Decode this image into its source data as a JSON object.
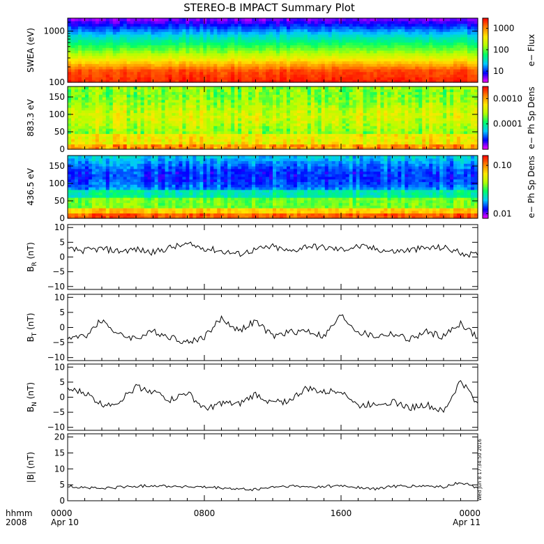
{
  "title": "STEREO-B IMPACT Summary Plot",
  "footer": {
    "row1_left": "hhmm",
    "row2_left": "2008",
    "ticks": [
      {
        "top": "0000",
        "bottom": "Apr 10",
        "frac": 0.0
      },
      {
        "top": "0800",
        "bottom": "",
        "frac": 0.3333
      },
      {
        "top": "1600",
        "bottom": "",
        "frac": 0.6667
      },
      {
        "top": "0000",
        "bottom": "Apr 11",
        "frac": 1.0
      }
    ]
  },
  "timestamp": "Wed Jun  8 17:34:50 2016",
  "colors": {
    "line": "#000000",
    "colormap": [
      "#ff00ff",
      "#0000ff",
      "#00c8ff",
      "#00ff66",
      "#b4ff00",
      "#ffe600",
      "#ff8000",
      "#ff0000"
    ]
  },
  "chart_data": [
    {
      "type": "heatmap",
      "name": "swea",
      "ylabel": "SWEA (eV)",
      "yscale": "log",
      "ylim": [
        100,
        1800
      ],
      "yticks": [
        {
          "label": "1000",
          "value": 1000
        },
        {
          "label": "100",
          "value": 100
        }
      ],
      "colorbar": {
        "label": "e− Flux",
        "scale": "log",
        "range": [
          3,
          3000
        ],
        "ticks": [
          {
            "label": "1000",
            "value": 1000
          },
          {
            "label": "100",
            "value": 100
          },
          {
            "label": "10",
            "value": 10
          }
        ]
      },
      "xlim_hours": [
        0,
        24
      ]
    },
    {
      "type": "heatmap",
      "name": "pad883",
      "ylabel": "883.3 eV",
      "yscale": "linear",
      "ylim": [
        0,
        180
      ],
      "yticks": [
        {
          "label": "150",
          "value": 150
        },
        {
          "label": "100",
          "value": 100
        },
        {
          "label": "50",
          "value": 50
        },
        {
          "label": "0",
          "value": 0
        }
      ],
      "colorbar": {
        "label": "e− Ph Sp Dens",
        "scale": "log",
        "range": [
          1e-05,
          0.003
        ],
        "ticks": [
          {
            "label": "0.0010",
            "value": 0.001
          },
          {
            "label": "0.0001",
            "value": 0.0001
          }
        ]
      },
      "xlim_hours": [
        0,
        24
      ]
    },
    {
      "type": "heatmap",
      "name": "pad436",
      "ylabel": "436.5 eV",
      "yscale": "linear",
      "ylim": [
        0,
        180
      ],
      "yticks": [
        {
          "label": "150",
          "value": 150
        },
        {
          "label": "100",
          "value": 100
        },
        {
          "label": "50",
          "value": 50
        },
        {
          "label": "0",
          "value": 0
        }
      ],
      "colorbar": {
        "label": "e− Ph Sp Dens",
        "scale": "log",
        "range": [
          0.008,
          0.16
        ],
        "ticks": [
          {
            "label": "0.10",
            "value": 0.1
          },
          {
            "label": "0.01",
            "value": 0.01
          }
        ]
      },
      "xlim_hours": [
        0,
        24
      ]
    },
    {
      "type": "line",
      "name": "br",
      "ylabel_main": "B",
      "ylabel_sub": "R",
      "ylabel_unit": " (nT)",
      "ylim": [
        -11,
        11
      ],
      "yticks": [
        {
          "label": "10",
          "value": 10
        },
        {
          "label": "5",
          "value": 5
        },
        {
          "label": "0",
          "value": 0
        },
        {
          "label": "−5",
          "value": -5
        },
        {
          "label": "−10",
          "value": -10
        }
      ],
      "x_hours": [
        0,
        1,
        2,
        3,
        4,
        5,
        6,
        7,
        8,
        9,
        10,
        11,
        12,
        13,
        14,
        15,
        16,
        17,
        18,
        19,
        20,
        21,
        22,
        23,
        24
      ],
      "y": [
        2.5,
        2.2,
        2.8,
        2.0,
        2.6,
        1.5,
        3.2,
        4.2,
        3.0,
        2.0,
        1.0,
        2.5,
        3.5,
        1.8,
        3.8,
        3.2,
        2.5,
        3.6,
        2.8,
        1.8,
        2.3,
        3.0,
        3.2,
        1.5,
        0.5
      ]
    },
    {
      "type": "line",
      "name": "bt",
      "ylabel_main": "B",
      "ylabel_sub": "T",
      "ylabel_unit": " (nT)",
      "ylim": [
        -11,
        11
      ],
      "yticks": [
        {
          "label": "10",
          "value": 10
        },
        {
          "label": "5",
          "value": 5
        },
        {
          "label": "0",
          "value": 0
        },
        {
          "label": "−5",
          "value": -5
        },
        {
          "label": "−10",
          "value": -10
        }
      ],
      "x_hours": [
        0,
        1,
        2,
        3,
        4,
        5,
        6,
        7,
        8,
        9,
        10,
        11,
        12,
        13,
        14,
        15,
        16,
        17,
        18,
        19,
        20,
        21,
        22,
        23,
        24
      ],
      "y": [
        -3.5,
        -3.0,
        2.5,
        -2.5,
        -3.5,
        -1.5,
        -3.0,
        -5.0,
        -3.0,
        3.0,
        -1.0,
        2.0,
        -3.0,
        -1.5,
        -1.0,
        -3.0,
        4.0,
        -1.5,
        -3.0,
        -2.0,
        -4.0,
        -1.5,
        -3.0,
        1.5,
        -3.5
      ]
    },
    {
      "type": "line",
      "name": "bn",
      "ylabel_main": "B",
      "ylabel_sub": "N",
      "ylabel_unit": " (nT)",
      "ylim": [
        -11,
        11
      ],
      "yticks": [
        {
          "label": "10",
          "value": 10
        },
        {
          "label": "5",
          "value": 5
        },
        {
          "label": "0",
          "value": 0
        },
        {
          "label": "−5",
          "value": -5
        },
        {
          "label": "−10",
          "value": -10
        }
      ],
      "x_hours": [
        0,
        1,
        2,
        3,
        4,
        5,
        6,
        7,
        8,
        9,
        10,
        11,
        12,
        13,
        14,
        15,
        16,
        17,
        18,
        19,
        20,
        21,
        22,
        23,
        24
      ],
      "y": [
        2.5,
        1.5,
        -2.5,
        -1.5,
        3.5,
        2.0,
        -1.0,
        1.5,
        -4.0,
        -2.0,
        -2.5,
        1.0,
        -2.0,
        -1.0,
        3.0,
        1.5,
        2.5,
        -3.0,
        -2.0,
        -1.5,
        -3.5,
        -2.5,
        -5.0,
        5.5,
        -2.0
      ]
    },
    {
      "type": "line",
      "name": "bmag",
      "ylabel_main": "|B|",
      "ylabel_sub": "",
      "ylabel_unit": " (nT)",
      "ylim": [
        0,
        21
      ],
      "yticks": [
        {
          "label": "20",
          "value": 20
        },
        {
          "label": "15",
          "value": 15
        },
        {
          "label": "10",
          "value": 10
        },
        {
          "label": "5",
          "value": 5
        },
        {
          "label": "0",
          "value": 0
        }
      ],
      "x_hours": [
        0,
        1,
        2,
        3,
        4,
        5,
        6,
        7,
        8,
        9,
        10,
        11,
        12,
        13,
        14,
        15,
        16,
        17,
        18,
        19,
        20,
        21,
        22,
        23,
        24
      ],
      "y": [
        4.5,
        4.2,
        3.8,
        4.3,
        4.5,
        4.8,
        4.6,
        4.4,
        4.2,
        4.0,
        3.6,
        3.5,
        4.3,
        4.6,
        4.3,
        4.5,
        4.7,
        4.2,
        3.6,
        4.6,
        4.5,
        4.6,
        4.3,
        5.8,
        4.0
      ]
    }
  ]
}
